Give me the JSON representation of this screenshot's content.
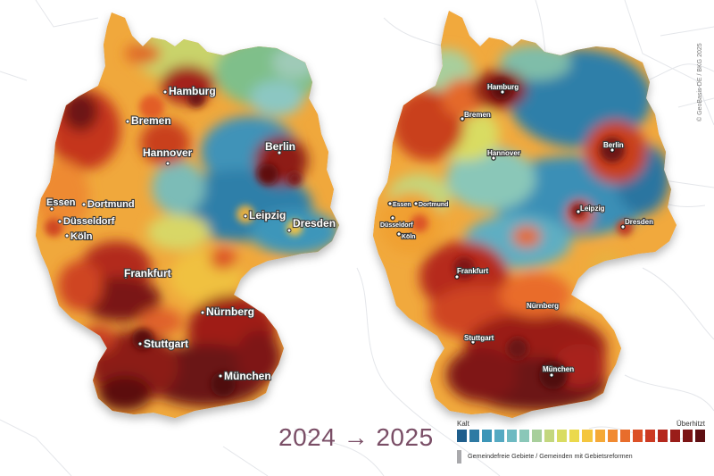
{
  "title": "2024 → 2025",
  "credit": "© GeoBasis-DE / BKG 2025",
  "legend": {
    "min_label": "Kalt",
    "max_label": "Überhitzt",
    "note": "Gemeindefreie Gebiete / Gemeinden mit Gebietsreformen",
    "note_color": "#a9a9ac",
    "colors": [
      "#1f5e8c",
      "#2e7aa3",
      "#3d96b8",
      "#55a9c2",
      "#6ebac2",
      "#8ac7b8",
      "#a8cf9c",
      "#c3d77e",
      "#d9dc62",
      "#ebd94c",
      "#f4c63f",
      "#f5a937",
      "#f18a31",
      "#e86d2c",
      "#dc5127",
      "#cc3a22",
      "#b5281d",
      "#9a1d19",
      "#7c1414",
      "#5e0f12"
    ]
  },
  "maps": [
    {
      "year": "2024",
      "cities": [
        {
          "name": "Hamburg"
        },
        {
          "name": "Bremen"
        },
        {
          "name": "Berlin"
        },
        {
          "name": "Hannover"
        },
        {
          "name": "Essen"
        },
        {
          "name": "Dortmund"
        },
        {
          "name": "Düsseldorf"
        },
        {
          "name": "Köln"
        },
        {
          "name": "Leipzig"
        },
        {
          "name": "Dresden"
        },
        {
          "name": "Frankfurt"
        },
        {
          "name": "Nürnberg"
        },
        {
          "name": "Stuttgart"
        },
        {
          "name": "München"
        }
      ]
    },
    {
      "year": "2025",
      "cities": [
        {
          "name": "Hamburg"
        },
        {
          "name": "Bremen"
        },
        {
          "name": "Berlin"
        },
        {
          "name": "Hannover"
        },
        {
          "name": "Essen"
        },
        {
          "name": "Dortmund"
        },
        {
          "name": "Düsseldorf"
        },
        {
          "name": "Köln"
        },
        {
          "name": "Leipzig"
        },
        {
          "name": "Dresden"
        },
        {
          "name": "Frankfurt"
        },
        {
          "name": "Nürnberg"
        },
        {
          "name": "Stuttgart"
        },
        {
          "name": "München"
        }
      ]
    }
  ]
}
